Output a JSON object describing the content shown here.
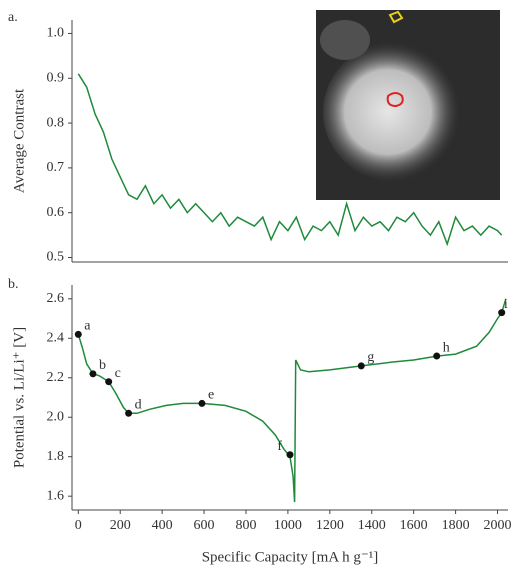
{
  "chart_data": [
    {
      "type": "line",
      "panel_label": "a.",
      "ylabel": "Average Contrast",
      "xlim": [
        -30,
        2050
      ],
      "ylim": [
        0.49,
        1.03
      ],
      "yticks": [
        0.5,
        0.6,
        0.7,
        0.8,
        0.9,
        {
          "value": 1,
          "label": "1.0"
        }
      ],
      "series": [
        {
          "color": "#1e8a3a",
          "x": [
            0,
            40,
            80,
            120,
            160,
            200,
            240,
            280,
            320,
            360,
            400,
            440,
            480,
            520,
            560,
            600,
            640,
            680,
            720,
            760,
            800,
            840,
            880,
            920,
            960,
            1000,
            1040,
            1080,
            1120,
            1160,
            1200,
            1240,
            1280,
            1320,
            1360,
            1400,
            1440,
            1480,
            1520,
            1560,
            1600,
            1640,
            1680,
            1720,
            1760,
            1800,
            1840,
            1880,
            1920,
            1960,
            2000,
            2020
          ],
          "values": [
            0.91,
            0.88,
            0.82,
            0.78,
            0.72,
            0.68,
            0.64,
            0.63,
            0.66,
            0.62,
            0.64,
            0.61,
            0.63,
            0.6,
            0.62,
            0.6,
            0.58,
            0.6,
            0.57,
            0.59,
            0.58,
            0.57,
            0.59,
            0.54,
            0.58,
            0.56,
            0.59,
            0.54,
            0.57,
            0.56,
            0.58,
            0.55,
            0.62,
            0.56,
            0.59,
            0.57,
            0.58,
            0.56,
            0.59,
            0.58,
            0.6,
            0.57,
            0.55,
            0.58,
            0.53,
            0.59,
            0.56,
            0.57,
            0.55,
            0.57,
            0.56,
            0.55
          ]
        }
      ]
    },
    {
      "type": "line",
      "panel_label": "b.",
      "ylabel": "Potential vs. Li/Li⁺ [V]",
      "xlabel": "Specific Capacity [mA h g⁻¹]",
      "xlim": [
        -30,
        2050
      ],
      "ylim": [
        1.53,
        2.67
      ],
      "xticks": [
        0,
        200,
        400,
        600,
        800,
        1000,
        1200,
        1400,
        1600,
        1800,
        2000
      ],
      "yticks": [
        1.6,
        1.8,
        {
          "value": 2,
          "label": "2.0"
        },
        2.2,
        2.4,
        2.6
      ],
      "series": [
        {
          "color": "#1e8a3a",
          "x": [
            0,
            20,
            40,
            70,
            100,
            145,
            180,
            215,
            240,
            280,
            340,
            420,
            500,
            590,
            700,
            800,
            880,
            940,
            980,
            1010,
            1025,
            1032,
            1037,
            1060,
            1100,
            1200,
            1350,
            1500,
            1600,
            1710,
            1800,
            1900,
            1960,
            2000,
            2020,
            2040
          ],
          "values": [
            2.42,
            2.35,
            2.27,
            2.22,
            2.21,
            2.18,
            2.12,
            2.05,
            2.02,
            2.02,
            2.04,
            2.06,
            2.07,
            2.07,
            2.06,
            2.03,
            1.98,
            1.91,
            1.84,
            1.8,
            1.7,
            1.57,
            2.29,
            2.24,
            2.23,
            2.24,
            2.26,
            2.28,
            2.29,
            2.31,
            2.32,
            2.36,
            2.43,
            2.5,
            2.53,
            2.6
          ]
        }
      ],
      "points": {
        "x": [
          0,
          70,
          145,
          240,
          590,
          1010,
          1350,
          1710,
          2020
        ],
        "values": [
          2.42,
          2.22,
          2.18,
          2.02,
          2.07,
          1.81,
          2.26,
          2.31,
          2.53
        ],
        "labels": [
          "a",
          "b",
          "c",
          "d",
          "e",
          "f",
          "g",
          "h",
          "i"
        ]
      }
    }
  ]
}
